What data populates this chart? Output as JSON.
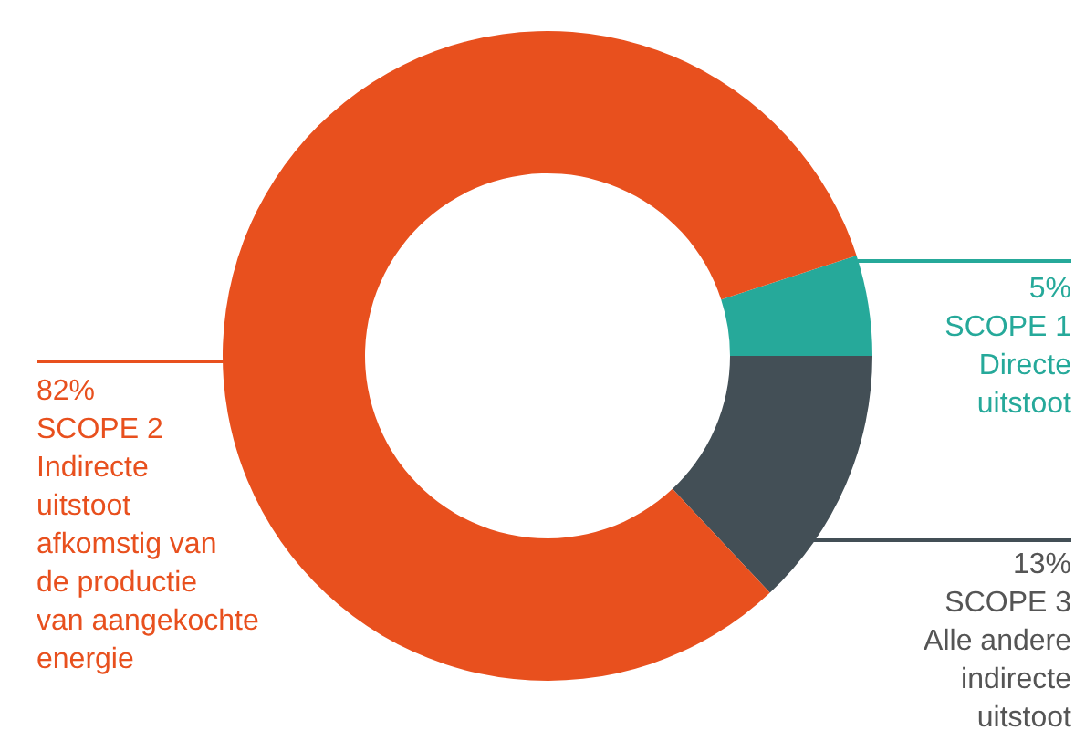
{
  "chart_data": {
    "type": "donut",
    "categories": [
      "SCOPE 1",
      "SCOPE 3",
      "SCOPE 2"
    ],
    "values": [
      5,
      13,
      82
    ],
    "colors": [
      "#26a99a",
      "#434f56",
      "#e8501e"
    ],
    "value_labels": [
      "5%",
      "13%",
      "82%"
    ],
    "annotations": [
      "Directe uitstoot",
      "Alle andere indirecte uitstoot",
      "Indirecte uitstoot afkomstig van de productie van aangekochte energie"
    ]
  }
}
